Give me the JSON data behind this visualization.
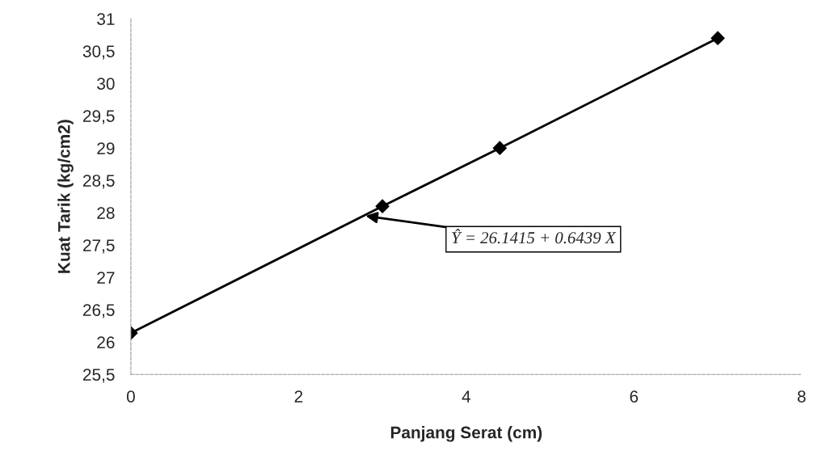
{
  "chart_data": {
    "type": "line",
    "xlabel": "Panjang Serat (cm)",
    "ylabel": "Kuat Tarik (kg/cm2)",
    "x": [
      0,
      3,
      4.4,
      7
    ],
    "series": [
      {
        "color": "#000000",
        "values": [
          26.14,
          28.1,
          29.0,
          30.7
        ]
      }
    ],
    "marker": "diamond",
    "line_style": "solid",
    "xlim": [
      0,
      8
    ],
    "xticks": [
      0,
      2,
      4,
      6,
      8
    ],
    "ylim": [
      25.5,
      31
    ],
    "yticks": [
      {
        "value": 25.5,
        "label": "25,5"
      },
      26,
      {
        "value": 26.5,
        "label": "26,5"
      },
      27,
      {
        "value": 27.5,
        "label": "27,5"
      },
      28,
      {
        "value": 28.5,
        "label": "28,5"
      },
      29,
      {
        "value": 29.5,
        "label": "29,5"
      },
      30,
      {
        "value": 30.5,
        "label": "30,5"
      },
      31
    ],
    "grid": false,
    "legend": false,
    "annotations": [
      {
        "text": "Ŷ = 26.1415 + 0.6439 X",
        "x": 2.8,
        "y": 27.95
      }
    ]
  }
}
